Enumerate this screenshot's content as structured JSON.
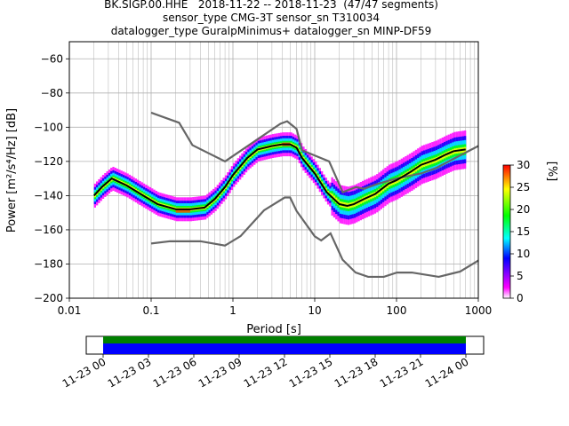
{
  "title_lines": [
    "BK.SIGP.00.HHE   2018-11-22 -- 2018-11-23  (47/47 segments)",
    "sensor_type CMG-3T sensor_sn T310034",
    "datalogger_type GuralpMinimus+ datalogger_sn MINP-DF59"
  ],
  "chart_data": [
    {
      "type": "heatmap",
      "xlabel": "Period [s]",
      "ylabel": "Power [m²/s⁴/Hz] [dB]",
      "xscale": "log",
      "xlim": [
        0.01,
        1000
      ],
      "ylim": [
        -200,
        -50
      ],
      "xticks": [
        {
          "value": 0.01,
          "label": "0.01"
        },
        {
          "value": 0.1,
          "label": "0.1"
        },
        {
          "value": 1,
          "label": "1"
        },
        {
          "value": 10,
          "label": "10"
        },
        {
          "value": 100,
          "label": "100"
        },
        {
          "value": 1000,
          "label": "1000"
        }
      ],
      "yticks": [
        -60,
        -80,
        -100,
        -120,
        -140,
        -160,
        -180,
        -200
      ],
      "grid": true,
      "colorbar": {
        "label": "[%]",
        "range": [
          0,
          30
        ],
        "ticks": [
          0,
          5,
          10,
          15,
          20,
          25,
          30
        ],
        "colors": [
          "#ffffff",
          "#ff00ff",
          "#0000ff",
          "#00ffff",
          "#00ff00",
          "#ffff00",
          "#ff0000"
        ]
      },
      "mean_curve": {
        "color": "#000000",
        "x": [
          0.02,
          0.025,
          0.033,
          0.05,
          0.08,
          0.12,
          0.2,
          0.3,
          0.45,
          0.6,
          0.8,
          1.0,
          1.5,
          2.0,
          3.0,
          4.0,
          5.0,
          6.0,
          7.0,
          10.0,
          14.0,
          20.0,
          25.0,
          30.0,
          40.0,
          55.0,
          80.0,
          100.0,
          150.0,
          200.0,
          300.0,
          400.0,
          500.0,
          700.0
        ],
        "y": [
          -140,
          -135,
          -130,
          -134,
          -140,
          -145,
          -148,
          -148,
          -147,
          -142,
          -135,
          -128,
          -118,
          -113,
          -111,
          -110,
          -110,
          -112,
          -118,
          -127,
          -138,
          -145,
          -146,
          -145,
          -142,
          -139,
          -133,
          -131,
          -126,
          -122,
          -119,
          -116,
          -114,
          -113
        ]
      },
      "noise_models": [
        {
          "name": "",
          "color": "#666666",
          "x": [
            0.1,
            0.22,
            0.32,
            0.8,
            3.8,
            4.6,
            6.0,
            7.0,
            15.0,
            22.0,
            32.0,
            40.0,
            60.0,
            100.0,
            200.0,
            300.0,
            1000.0
          ],
          "y": [
            -91.5,
            -97.4,
            -110.5,
            -120.0,
            -98.0,
            -96.5,
            -101.0,
            -113.5,
            -120.0,
            -138.0,
            -135.0,
            -136.0,
            -133.0,
            -130.0,
            -127.0,
            -124.0,
            -111.0
          ]
        },
        {
          "name": "",
          "color": "#666666",
          "x": [
            0.1,
            0.17,
            0.4,
            0.8,
            1.24,
            2.4,
            4.3,
            5.0,
            6.0,
            10.0,
            12.0,
            15.6,
            21.9,
            31.6,
            45.0,
            70.0,
            101.0,
            154.0,
            328.0,
            600.0,
            1000.0
          ],
          "y": [
            -168,
            -166.7,
            -166.7,
            -169.2,
            -163.7,
            -148.6,
            -141.1,
            -141.1,
            -149.0,
            -163.8,
            -166.2,
            -162.1,
            -177.5,
            -185.0,
            -187.5,
            -187.5,
            -185.0,
            -185.0,
            -187.5,
            -184.4,
            -178.0
          ]
        }
      ],
      "density_bands": [
        {
          "level": 30,
          "x": [
            0.2,
            0.3
          ],
          "y": [
            -150,
            -147.5
          ]
        },
        {
          "level": 30,
          "x": [
            4.0,
            5.0
          ],
          "y": [
            -111,
            -109
          ]
        }
      ]
    },
    {
      "type": "bar",
      "title": "",
      "x_start": "2018-11-23 00",
      "x_end": "2018-11-24 00",
      "xticks": [
        "11-23 00",
        "11-23 03",
        "11-23 06",
        "11-23 09",
        "11-23 12",
        "11-23 15",
        "11-23 18",
        "11-23 21",
        "11-24 00"
      ],
      "series": [
        {
          "color": "#008000",
          "start_hour": 0,
          "end_hour": 24
        },
        {
          "color": "#0000ff",
          "start_hour": 0,
          "end_hour": 24
        }
      ]
    }
  ]
}
